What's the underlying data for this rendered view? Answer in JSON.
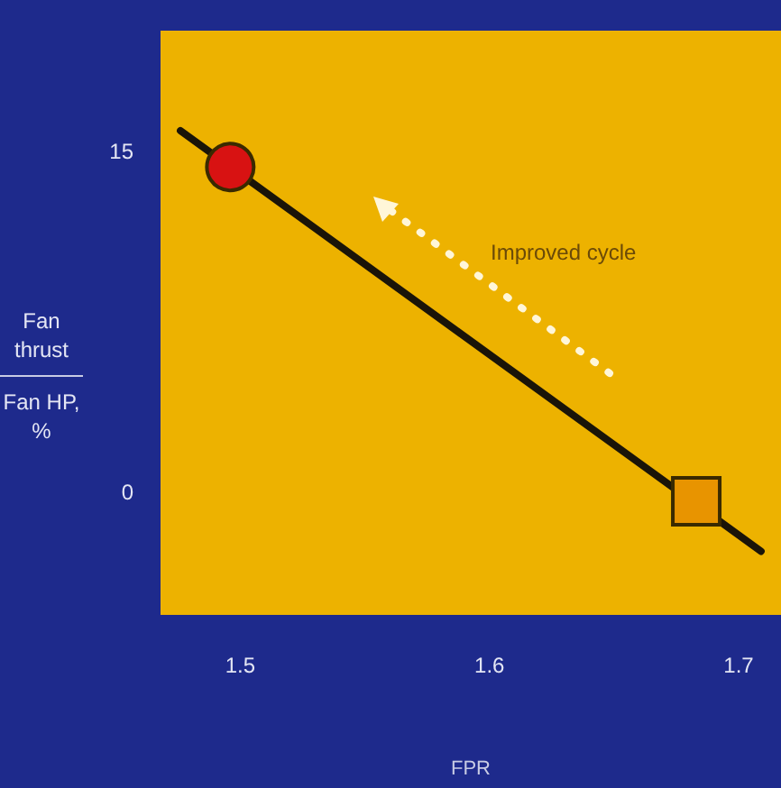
{
  "chart_data": {
    "type": "line",
    "xlabel": "FPR",
    "ylabel": "Fan thrust\nFan HP, %",
    "annotations": [
      "Improved cycle"
    ],
    "xlim": [
      1.468,
      1.717
    ],
    "xticks": [
      1.5,
      1.6,
      1.7
    ],
    "ylim": [
      -5.4,
      20.3
    ],
    "yticks": [
      0,
      15
    ],
    "grid": false,
    "series": [
      {
        "color": "#1a1408",
        "x": [
          1.476,
          1.709
        ],
        "values": [
          15.9,
          -2.6
        ],
        "marker": "none"
      },
      {
        "type": "scatter",
        "color": "#d81212",
        "x": [
          1.496
        ],
        "values": [
          14.3
        ],
        "marker": "circle"
      },
      {
        "type": "scatter",
        "color": "#e89400",
        "x": [
          1.683
        ],
        "values": [
          -0.4
        ],
        "marker": "square"
      }
    ]
  }
}
